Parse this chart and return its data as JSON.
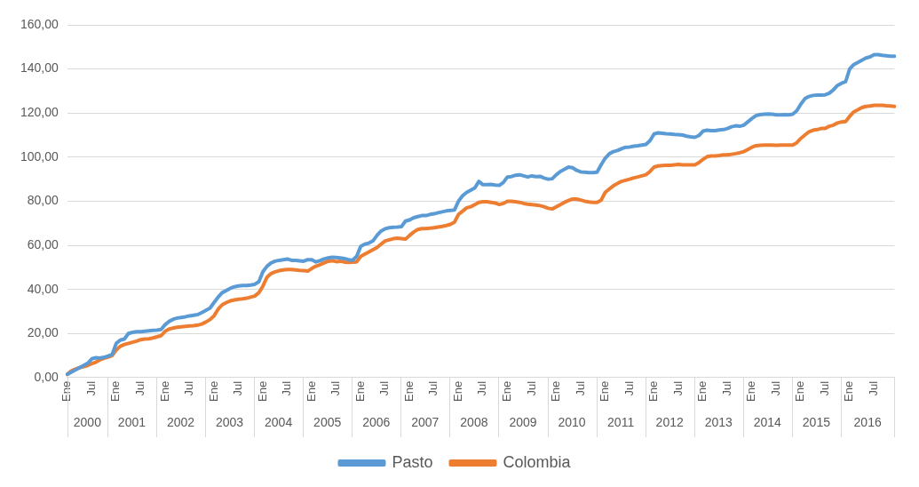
{
  "chart_data": {
    "type": "line",
    "categories": [
      "Ene",
      null,
      null,
      null,
      null,
      null,
      "Jul",
      null,
      null,
      null,
      null,
      null,
      "Ene",
      null,
      null,
      null,
      null,
      null,
      "Jul",
      null,
      null,
      null,
      null,
      null,
      "Ene",
      null,
      null,
      null,
      null,
      null,
      "Jul",
      null,
      null,
      null,
      null,
      null,
      "Ene",
      null,
      null,
      null,
      null,
      null,
      "Jul",
      null,
      null,
      null,
      null,
      null,
      "Ene",
      null,
      null,
      null,
      null,
      null,
      "Jul",
      null,
      null,
      null,
      null,
      null,
      "Ene",
      null,
      null,
      null,
      null,
      null,
      "Jul",
      null,
      null,
      null,
      null,
      null,
      "Ene",
      null,
      null,
      null,
      null,
      null,
      "Jul",
      null,
      null,
      null,
      null,
      null,
      "Ene",
      null,
      null,
      null,
      null,
      null,
      "Jul",
      null,
      null,
      null,
      null,
      null,
      "Ene",
      null,
      null,
      null,
      null,
      null,
      "Jul",
      null,
      null,
      null,
      null,
      null,
      "Ene",
      null,
      null,
      null,
      null,
      null,
      "Jul",
      null,
      null,
      null,
      null,
      null,
      "Ene",
      null,
      null,
      null,
      null,
      null,
      "Jul",
      null,
      null,
      null,
      null,
      null,
      "Ene",
      null,
      null,
      null,
      null,
      null,
      "Jul",
      null,
      null,
      null,
      null,
      null,
      "Ene",
      null,
      null,
      null,
      null,
      null,
      "Jul",
      null,
      null,
      null,
      null,
      null,
      "Ene",
      null,
      null,
      null,
      null,
      null,
      "Jul",
      null,
      null,
      null,
      null,
      null,
      "Ene",
      null,
      null,
      null,
      null,
      null,
      "Jul",
      null,
      null,
      null,
      null,
      null,
      "Ene",
      null,
      null,
      null,
      null,
      null,
      "Jul",
      null,
      null,
      null,
      null,
      null,
      "Ene",
      null,
      null,
      null,
      null,
      null,
      "Jul",
      null,
      null,
      null,
      null,
      null
    ],
    "annotations": [
      "2000",
      "2001",
      "2002",
      "2003",
      "2004",
      "2005",
      "2006",
      "2007",
      "2008",
      "2009",
      "2010",
      "2011",
      "2012",
      "2013",
      "2014",
      "2015",
      "2016"
    ],
    "series": [
      {
        "name": "Pasto",
        "color": "#5b9bd5",
        "values": [
          1.5,
          2.5,
          3.5,
          4.5,
          5.5,
          6.5,
          8.5,
          9,
          8.8,
          9.2,
          9.8,
          10.5,
          15.5,
          17,
          17.5,
          20,
          20.5,
          20.8,
          20.8,
          21,
          21.2,
          21.4,
          21.5,
          21.8,
          24,
          25.5,
          26.5,
          27,
          27.3,
          27.6,
          28,
          28.3,
          28.6,
          29.5,
          30.5,
          31.5,
          34,
          36.5,
          38.5,
          39.5,
          40.5,
          41.2,
          41.6,
          41.8,
          41.8,
          42,
          42.3,
          43.5,
          48,
          50.5,
          52,
          52.8,
          53.2,
          53.5,
          53.8,
          53.2,
          53.2,
          53,
          52.8,
          53.5,
          53.5,
          52.5,
          53,
          53.8,
          54.3,
          54.6,
          54.5,
          54.3,
          54,
          53.5,
          53.2,
          55,
          59.5,
          60.5,
          61,
          62,
          64.5,
          66.5,
          67.5,
          68,
          68.2,
          68.3,
          68.5,
          71,
          71.5,
          72.5,
          73,
          73.5,
          73.5,
          74,
          74.3,
          74.8,
          75.2,
          75.6,
          75.8,
          76,
          80,
          82.5,
          84,
          85,
          86,
          89,
          87.5,
          87.5,
          87.6,
          87.3,
          87.2,
          88.5,
          91,
          91.2,
          91.8,
          92,
          91.5,
          91,
          91.5,
          91.2,
          91.3,
          90.5,
          90,
          90.2,
          92,
          93.5,
          94.5,
          95.5,
          95.2,
          94,
          93.3,
          93.2,
          93,
          93,
          93.2,
          96.5,
          99.5,
          101.5,
          102.5,
          103,
          103.8,
          104.5,
          104.6,
          105,
          105.2,
          105.5,
          105.8,
          107.5,
          110.5,
          111,
          110.8,
          110.6,
          110.5,
          110.3,
          110.2,
          110,
          109.5,
          109.2,
          109,
          109.8,
          111.8,
          112.2,
          112,
          112,
          112.3,
          112.5,
          113,
          113.8,
          114.2,
          114,
          114.5,
          116,
          117.5,
          118.8,
          119.3,
          119.5,
          119.6,
          119.5,
          119.2,
          119.2,
          119.3,
          119.2,
          119.5,
          121,
          124,
          126.5,
          127.5,
          128,
          128.2,
          128.2,
          128.3,
          129,
          130.5,
          132.5,
          133.5,
          134.2,
          140,
          142,
          143,
          144,
          145,
          145.5,
          146.5,
          146.5,
          146.2,
          146,
          145.8,
          145.8
        ]
      },
      {
        "name": "Colombia",
        "color": "#ed7d31",
        "values": [
          1.5,
          3,
          3.8,
          4.5,
          5,
          5.5,
          6.3,
          7,
          8,
          8.8,
          9.3,
          10,
          12.5,
          14.2,
          15,
          15.5,
          16,
          16.5,
          17.2,
          17.5,
          17.6,
          18,
          18.5,
          19,
          21,
          22,
          22.5,
          22.8,
          23,
          23.2,
          23.4,
          23.5,
          23.8,
          24.3,
          25.2,
          26.3,
          28,
          31,
          33,
          34,
          34.8,
          35.2,
          35.5,
          35.7,
          36,
          36.5,
          37,
          38.5,
          41.5,
          45.5,
          47.2,
          48,
          48.5,
          48.8,
          49,
          49,
          48.8,
          48.6,
          48.5,
          48.3,
          49.5,
          50.5,
          51.2,
          52,
          52.8,
          53,
          52.6,
          52.8,
          52.4,
          52.3,
          52.4,
          52.5,
          55,
          56,
          57,
          58,
          59,
          60.5,
          62,
          62.5,
          63,
          63.2,
          63,
          62.8,
          64.5,
          66,
          67.2,
          67.6,
          67.6,
          67.8,
          68,
          68.3,
          68.6,
          69,
          69.5,
          70.5,
          74,
          75.5,
          77,
          77.5,
          78.5,
          79.5,
          79.8,
          79.8,
          79.5,
          79.2,
          78.5,
          79,
          80,
          80,
          79.8,
          79.5,
          79,
          78.7,
          78.5,
          78.3,
          78,
          77.5,
          76.8,
          76.5,
          77.5,
          78.5,
          79.5,
          80.3,
          81,
          81,
          80.5,
          80,
          79.7,
          79.5,
          79.5,
          80.5,
          84,
          85.5,
          87,
          88,
          89,
          89.5,
          90,
          90.6,
          91,
          91.5,
          92,
          93.5,
          95.5,
          96,
          96.2,
          96.3,
          96.3,
          96.5,
          96.7,
          96.5,
          96.5,
          96.5,
          96.5,
          97.5,
          99,
          100.2,
          100.5,
          100.5,
          100.7,
          101,
          101,
          101.3,
          101.6,
          102,
          102.5,
          103.5,
          104.5,
          105.2,
          105.4,
          105.5,
          105.5,
          105.5,
          105.4,
          105.5,
          105.5,
          105.5,
          105.5,
          106.5,
          108.5,
          110,
          111.5,
          112.2,
          112.5,
          113,
          113,
          114,
          114.5,
          115.5,
          116,
          116.2,
          118.5,
          120.5,
          121.5,
          122.5,
          123,
          123.2,
          123.5,
          123.5,
          123.5,
          123.3,
          123.2,
          123
        ]
      }
    ],
    "ylim": [
      0,
      160
    ],
    "yticks": [
      {
        "value": 0,
        "label": "0,00"
      },
      {
        "value": 20,
        "label": "20,00"
      },
      {
        "value": 40,
        "label": "40,00"
      },
      {
        "value": 60,
        "label": "60,00"
      },
      {
        "value": 80,
        "label": "80,00"
      },
      {
        "value": 100,
        "label": "100,00"
      },
      {
        "value": 120,
        "label": "120,00"
      },
      {
        "value": 140,
        "label": "140,00"
      },
      {
        "value": 160,
        "label": "160,00"
      }
    ],
    "grid": "y",
    "legend": "bottom",
    "marker": "none",
    "line_style": "solid"
  }
}
